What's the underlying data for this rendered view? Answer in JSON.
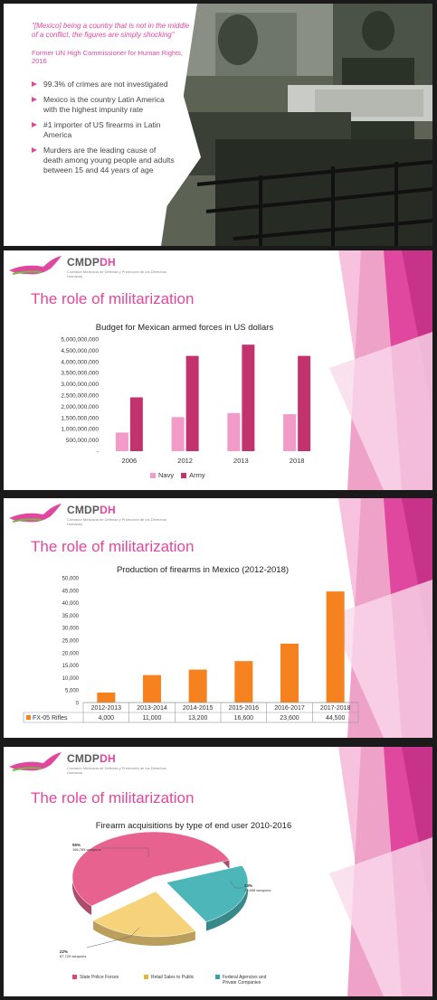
{
  "slide1": {
    "quote": "\"[Mexico] being a country that is not in the middle of a conflict, the figures are simply shocking\"",
    "attribution": "Former UN High Commissioner for Human Rights, 2016",
    "bullets": [
      "99.3% of crimes are not investigated",
      "Mexico is the country Latin America with the highest impunity rate",
      "#1 importer of US firearms in Latin America",
      "Murders are the leading cause of death among young people and adults between 15 and 44 years of age"
    ]
  },
  "logo": {
    "name_main": "CMDP",
    "name_accent": "DH",
    "subtitle": "Comisión Mexicana de Defensa y Promoción de los Derechos Humanos"
  },
  "slide_title": "The role of militarization",
  "colors": {
    "accent": "#e0479e",
    "navy": "#f29bc8",
    "army": "#c2336e",
    "rifles": "#f5821f"
  },
  "charts": [
    {
      "type": "bar",
      "title": "Budget for Mexican armed forces in US dollars",
      "categories": [
        "2006",
        "2012",
        "2013",
        "2018"
      ],
      "series": [
        {
          "name": "Navy",
          "values": [
            830000000,
            1520000000,
            1700000000,
            1650000000
          ]
        },
        {
          "name": "Army",
          "values": [
            2400000000,
            4250000000,
            4750000000,
            4250000000
          ]
        }
      ],
      "ylim": [
        0,
        5000000000
      ],
      "yticks": [
        "5,000,000,000",
        "4,500,000,000",
        "4,000,000,000",
        "3,500,000,000",
        "3,000,000,000",
        "2,500,000,000",
        "2,000,000,000",
        "1,500,000,000",
        "1,000,000,000",
        "500,000,000",
        "-"
      ],
      "legend_position": "bottom"
    },
    {
      "type": "bar",
      "title": "Production of firearms in Mexico (2012-2018)",
      "categories": [
        "2012-2013",
        "2013-2014",
        "2014-2015",
        "2015-2016",
        "2016-2017",
        "2017-2018"
      ],
      "series": [
        {
          "name": "FX-05 Rifles",
          "values": [
            4000,
            11000,
            13200,
            16600,
            23600,
            44500
          ],
          "labels": [
            "4,000",
            "11,000",
            "13,200",
            "16,600",
            "23,600",
            "44,500"
          ]
        }
      ],
      "ylim": [
        0,
        50000
      ],
      "yticks": [
        "50,000",
        "45,000",
        "40,000",
        "35,000",
        "30,000",
        "25,000",
        "20,000",
        "15,000",
        "10,000",
        "5,000",
        "0"
      ],
      "data_table": true
    },
    {
      "type": "pie",
      "title": "Firearm acquisitions by type of end user 2010-2016",
      "slices": [
        {
          "name": "State Police Forces",
          "value": 55,
          "label_pct": "55%",
          "label_count": "166,765 weapons",
          "color": "#e8628f"
        },
        {
          "name": "Federal Agencies and Private Companies",
          "value": 23,
          "label_pct": "23%",
          "label_count": "70,898 weapons",
          "color": "#4db6b8"
        },
        {
          "name": "Retail Sales to Public",
          "value": 22,
          "label_pct": "22%",
          "label_count": "67,729 weapons",
          "color": "#f6d37a"
        }
      ],
      "legend": [
        "State Police Forces",
        "Retail Sales to Public",
        "Federal Agencies and Private Companies"
      ],
      "legend_colors": [
        "#e0476e",
        "#e6b43a",
        "#36a3a5"
      ],
      "legend_position": "bottom"
    }
  ]
}
